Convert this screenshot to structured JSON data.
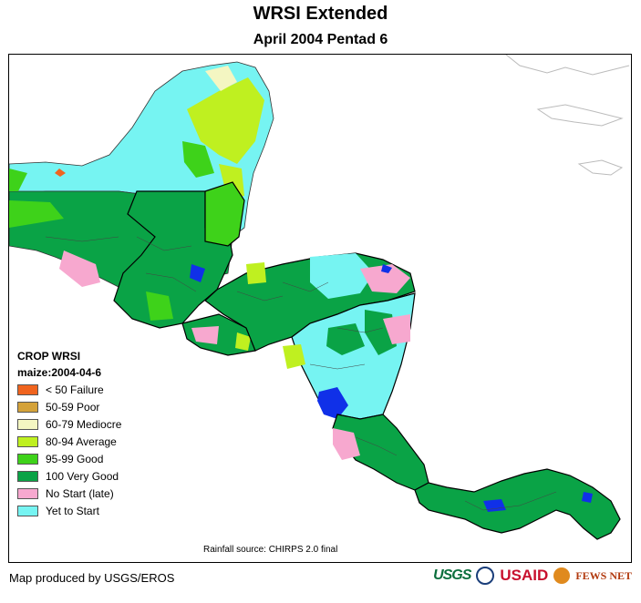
{
  "header": {
    "title": "WRSI Extended",
    "subtitle": "April 2004 Pentad 6"
  },
  "legend": {
    "title": "CROP WRSI",
    "subtitle": "maize:2004-04-6",
    "items": [
      {
        "label": "< 50  Failure",
        "color": "#f0641e"
      },
      {
        "label": "50-59 Poor",
        "color": "#d4a23a"
      },
      {
        "label": "60-79 Mediocre",
        "color": "#f4f6c2"
      },
      {
        "label": "80-94 Average",
        "color": "#bff020"
      },
      {
        "label": "95-99 Good",
        "color": "#3ed21a"
      },
      {
        "label": "100 Very Good",
        "color": "#0aa346"
      },
      {
        "label": "No Start (late)",
        "color": "#f7a8cf"
      },
      {
        "label": "Yet to Start",
        "color": "#76f4f2"
      }
    ]
  },
  "footer": {
    "rain_source": "Rainfall source: CHIRPS 2.0 final",
    "credit": "Map produced by USGS/EROS"
  },
  "logos": {
    "usgs": "USGS",
    "usaid": "USAID",
    "fews": "FEWS NET"
  },
  "water_color": "#1030e8"
}
